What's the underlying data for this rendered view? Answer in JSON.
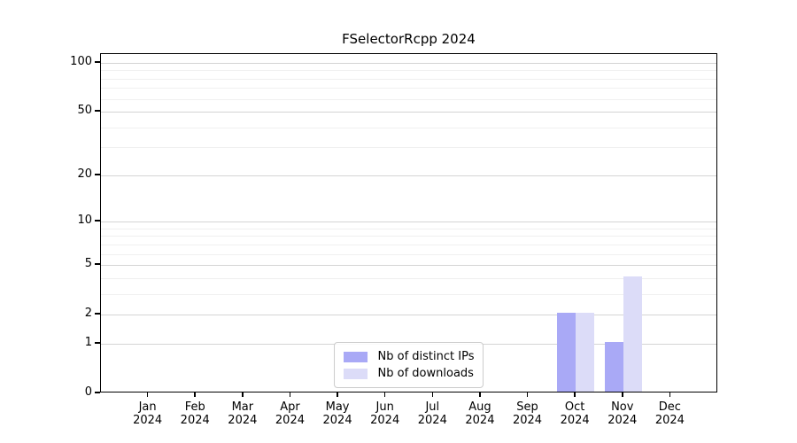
{
  "chart_data": {
    "type": "bar",
    "title": "FSelectorRcpp 2024",
    "categories": [
      "Jan",
      "Feb",
      "Mar",
      "Apr",
      "May",
      "Jun",
      "Jul",
      "Aug",
      "Sep",
      "Oct",
      "Nov",
      "Dec"
    ],
    "x_year": "2024",
    "series": [
      {
        "name": "Nb of distinct IPs",
        "color": "#a9a9f6",
        "values": [
          0,
          0,
          0,
          0,
          0,
          0,
          0,
          0,
          0,
          2,
          1,
          0
        ]
      },
      {
        "name": "Nb of downloads",
        "color": "#dcdcf8",
        "values": [
          0,
          0,
          0,
          0,
          0,
          0,
          0,
          0,
          0,
          2,
          4,
          0
        ]
      }
    ],
    "y_scale": "log1p",
    "ylim": [
      0,
      113
    ],
    "y_major_ticks": [
      100,
      50,
      20,
      10,
      5,
      2,
      1,
      0
    ],
    "y_minor_ticks": [
      3,
      4,
      6,
      7,
      8,
      9,
      30,
      40,
      60,
      70,
      80,
      90
    ],
    "grid": true,
    "legend_position": "lower center inside",
    "colors": {
      "axis": "#000000",
      "grid_major": "#d4d4d4",
      "grid_minor": "#f0f0f0",
      "background": "#ffffff"
    }
  }
}
